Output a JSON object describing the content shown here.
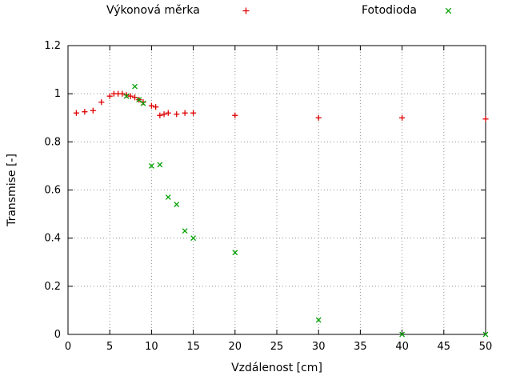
{
  "chart_data": {
    "type": "scatter",
    "title": "",
    "xlabel": "Vzdálenost [cm]",
    "ylabel": "Transmise [-]",
    "xlim": [
      0,
      50
    ],
    "ylim": [
      0,
      1.2
    ],
    "xticks": [
      0,
      5,
      10,
      15,
      20,
      25,
      30,
      35,
      40,
      45,
      50
    ],
    "yticks": [
      0,
      0.2,
      0.4,
      0.6,
      0.8,
      1,
      1.2
    ],
    "grid": true,
    "grid_style": "dotted",
    "legend_position": "top",
    "series": [
      {
        "name": "Výkonová měrka",
        "marker": "plus",
        "color": "#dd0000",
        "points": [
          [
            1,
            0.92
          ],
          [
            2,
            0.925
          ],
          [
            3,
            0.93
          ],
          [
            4,
            0.965
          ],
          [
            5,
            0.99
          ],
          [
            5.5,
            1.0
          ],
          [
            6,
            1.0
          ],
          [
            6.5,
            1.0
          ],
          [
            7,
            0.995
          ],
          [
            7.5,
            0.99
          ],
          [
            8,
            0.985
          ],
          [
            8.5,
            0.975
          ],
          [
            9,
            0.965
          ],
          [
            10,
            0.95
          ],
          [
            10.5,
            0.945
          ],
          [
            11,
            0.91
          ],
          [
            11.5,
            0.915
          ],
          [
            12,
            0.92
          ],
          [
            13,
            0.915
          ],
          [
            14,
            0.92
          ],
          [
            15,
            0.92
          ],
          [
            20,
            0.91
          ],
          [
            30,
            0.9
          ],
          [
            40,
            0.9
          ],
          [
            50,
            0.895
          ]
        ]
      },
      {
        "name": "Fotodioda",
        "marker": "cross",
        "color": "#00a000",
        "points": [
          [
            7,
            0.99
          ],
          [
            8,
            1.03
          ],
          [
            8.5,
            0.975
          ],
          [
            9,
            0.96
          ],
          [
            10,
            0.7
          ],
          [
            11,
            0.705
          ],
          [
            12,
            0.57
          ],
          [
            13,
            0.54
          ],
          [
            14,
            0.43
          ],
          [
            15,
            0.4
          ],
          [
            20,
            0.34
          ],
          [
            30,
            0.06
          ],
          [
            40,
            0.0
          ],
          [
            50,
            0.0
          ]
        ]
      }
    ]
  }
}
